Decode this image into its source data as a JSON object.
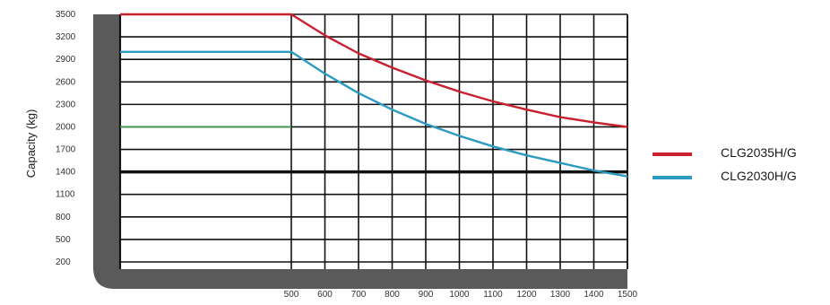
{
  "chart_data": {
    "type": "line",
    "title": "",
    "ylabel": "Capacity (kg)",
    "xlabel": "",
    "x_ticks": [
      "500",
      "600",
      "700",
      "800",
      "900",
      "1000",
      "1100",
      "1200",
      "1300",
      "1400",
      "1500"
    ],
    "y_ticks": [
      "3500",
      "3200",
      "2900",
      "2600",
      "2300",
      "2000",
      "1700",
      "1400",
      "1100",
      "800",
      "500",
      "200"
    ],
    "xlim": [
      0,
      1500
    ],
    "ylim": [
      200,
      3500
    ],
    "grid": true,
    "legend_position": "right",
    "series": [
      {
        "name": "CLG2035H/G",
        "color": "#c8202f",
        "x": [
          0,
          500,
          600,
          700,
          800,
          900,
          1000,
          1100,
          1200,
          1300,
          1400,
          1500
        ],
        "values": [
          3500,
          3500,
          3220,
          2980,
          2790,
          2620,
          2470,
          2340,
          2230,
          2130,
          2060,
          2000
        ]
      },
      {
        "name": "CLG2030H/G",
        "color": "#2b9bc1",
        "x": [
          0,
          500,
          600,
          700,
          800,
          900,
          1000,
          1100,
          1200,
          1300,
          1400,
          1500
        ],
        "values": [
          3000,
          3000,
          2710,
          2450,
          2230,
          2040,
          1880,
          1740,
          1620,
          1520,
          1420,
          1340
        ]
      }
    ],
    "reference_lines": [
      {
        "axis": "y",
        "value": 2000,
        "x_end": 500,
        "color": "#3a9a4a"
      },
      {
        "axis": "y",
        "value": 1400,
        "color": "#111111"
      }
    ]
  }
}
